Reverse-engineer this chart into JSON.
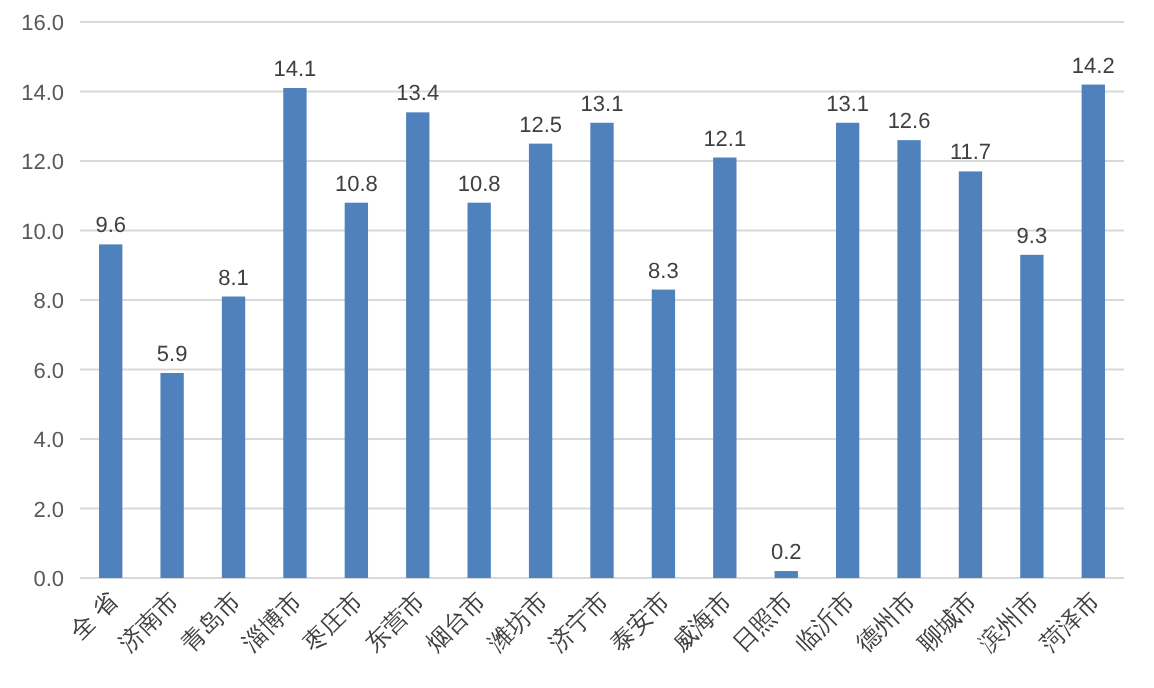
{
  "chart_data": {
    "type": "bar",
    "categories": [
      "全 省",
      "济南市",
      "青岛市",
      "淄博市",
      "枣庄市",
      "东营市",
      "烟台市",
      "潍坊市",
      "济宁市",
      "泰安市",
      "威海市",
      "日照市",
      "临沂市",
      "德州市",
      "聊城市",
      "滨州市",
      "菏泽市"
    ],
    "values": [
      9.6,
      5.9,
      8.1,
      14.1,
      10.8,
      13.4,
      10.8,
      12.5,
      13.1,
      8.3,
      12.1,
      0.2,
      13.1,
      12.6,
      11.7,
      9.3,
      14.2
    ],
    "color": "#4f81bd",
    "ylim": [
      0,
      16
    ],
    "yticks": [
      {
        "value": 0,
        "label": "0.0"
      },
      {
        "value": 2,
        "label": "2.0"
      },
      {
        "value": 4,
        "label": "4.0"
      },
      {
        "value": 6,
        "label": "6.0"
      },
      {
        "value": 8,
        "label": "8.0"
      },
      {
        "value": 10,
        "label": "10.0"
      },
      {
        "value": 12,
        "label": "12.0"
      },
      {
        "value": 14,
        "label": "14.0"
      },
      {
        "value": 16,
        "label": "16.0"
      }
    ],
    "grid": "y",
    "data_labels": true
  }
}
